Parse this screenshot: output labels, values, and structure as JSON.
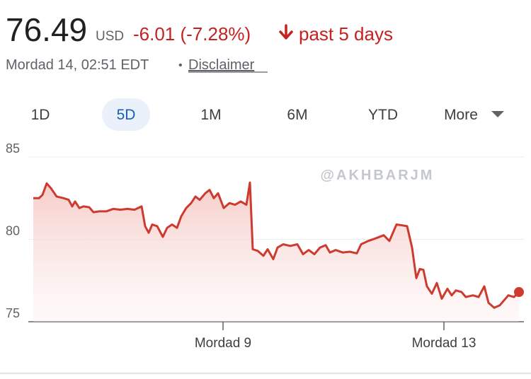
{
  "header": {
    "price": "76.49",
    "currency": "USD",
    "change": "-6.01 (-7.28%)",
    "period": "past 5 days",
    "timestamp": "Mordad 14, 02:51 EDT",
    "separator": "•",
    "disclaimer": "Disclaimer"
  },
  "tabs": [
    "1D",
    "5D",
    "1M",
    "6M",
    "YTD",
    "More"
  ],
  "selected_tab": 1,
  "watermark": "@AKHBARJM",
  "chart_data": {
    "type": "line",
    "color": "#cf3a2f",
    "x": [
      7,
      15,
      20,
      26,
      32,
      40,
      50,
      57,
      62,
      66,
      72,
      78,
      86,
      92,
      100,
      110,
      120,
      130,
      140,
      150,
      160,
      165,
      170,
      175,
      182,
      190,
      196,
      203,
      210,
      216,
      223,
      230,
      236,
      242,
      250,
      256,
      262,
      268,
      276,
      284,
      292,
      300,
      308,
      313,
      317,
      324,
      332,
      338,
      346,
      352,
      360,
      370,
      380,
      388,
      396,
      404,
      412,
      420,
      426,
      434,
      444,
      454,
      464,
      470,
      480,
      490,
      502,
      510,
      520,
      528,
      535,
      542,
      548,
      553,
      558,
      563,
      570,
      577,
      584,
      592,
      598,
      604,
      612,
      618,
      628,
      636,
      644,
      650,
      658,
      666,
      672,
      678,
      686,
      693
    ],
    "values": [
      82.5,
      82.5,
      82.7,
      83.4,
      83.1,
      82.6,
      82.5,
      82.4,
      82.0,
      82.3,
      81.9,
      82.0,
      81.95,
      81.65,
      81.7,
      81.7,
      81.85,
      81.8,
      81.85,
      81.8,
      82.0,
      80.8,
      80.4,
      80.9,
      80.8,
      80.15,
      80.7,
      80.9,
      80.7,
      81.4,
      81.9,
      82.2,
      82.6,
      82.4,
      82.8,
      83.0,
      82.5,
      82.8,
      81.9,
      82.2,
      82.1,
      82.3,
      82.1,
      83.45,
      79.4,
      79.3,
      79.0,
      79.4,
      78.8,
      79.5,
      79.7,
      79.6,
      79.7,
      79.1,
      79.35,
      79.1,
      79.5,
      79.65,
      79.2,
      79.35,
      79.2,
      79.25,
      79.15,
      79.7,
      79.9,
      80.05,
      80.25,
      79.9,
      80.9,
      80.85,
      80.8,
      79.5,
      77.65,
      78.2,
      78.15,
      77.15,
      76.7,
      77.35,
      76.4,
      77.0,
      76.6,
      76.9,
      76.8,
      76.5,
      76.6,
      76.5,
      77.15,
      76.15,
      75.85,
      76.0,
      76.3,
      76.6,
      76.5,
      76.8
    ],
    "xlim": [
      0,
      700
    ],
    "xticks": [
      {
        "value": 275,
        "label": "Mordad 9"
      },
      {
        "value": 587,
        "label": "Mordad 13"
      }
    ],
    "ylim": [
      75,
      85
    ],
    "yticks": [
      75,
      80,
      85
    ],
    "grid": true
  }
}
